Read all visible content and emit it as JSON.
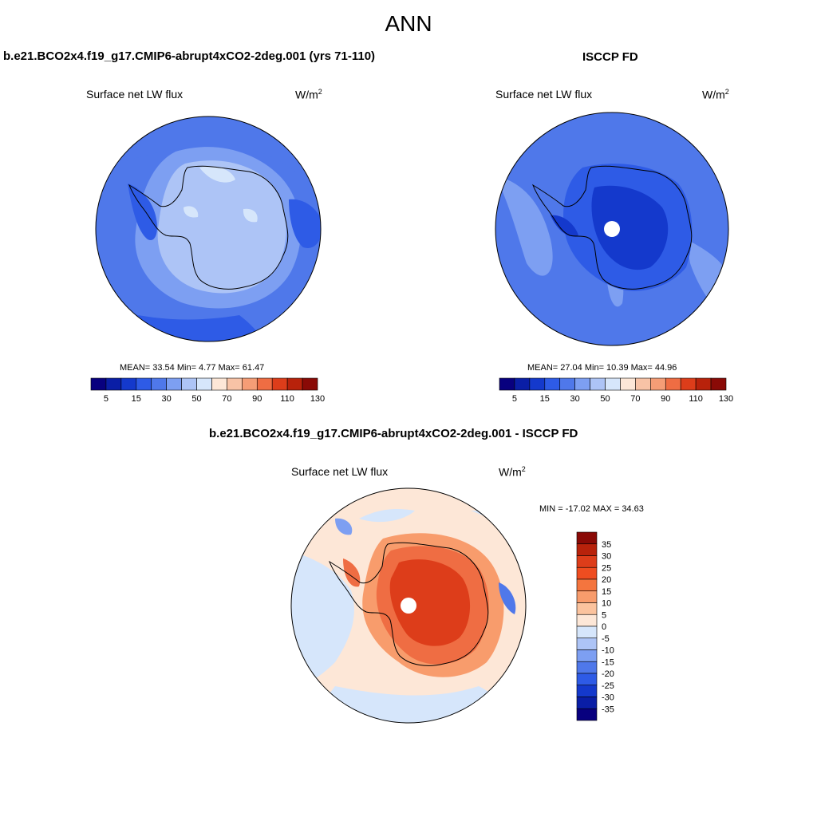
{
  "page_title": "ANN",
  "panels": [
    {
      "title": "b.e21.BCO2x4.f19_g17.CMIP6-abrupt4xCO2-2deg.001 (yrs 71-110)",
      "variable": "Surface net LW flux",
      "units_base": "W/m",
      "units_exp": "2",
      "stats": "MEAN=  33.54  Min=   4.77  Max=  61.47",
      "colorbar_labels": [
        "5",
        "15",
        "30",
        "50",
        "70",
        "90",
        "110",
        "130"
      ]
    },
    {
      "title": "ISCCP FD",
      "variable": "Surface net LW flux",
      "units_base": "W/m",
      "units_exp": "2",
      "stats": "MEAN=  27.04  Min=  10.39  Max=  44.96",
      "colorbar_labels": [
        "5",
        "15",
        "30",
        "50",
        "70",
        "90",
        "110",
        "130"
      ]
    },
    {
      "title": "b.e21.BCO2x4.f19_g17.CMIP6-abrupt4xCO2-2deg.001 - ISCCP FD",
      "variable": "Surface net LW flux",
      "units_base": "W/m",
      "units_exp": "2",
      "stats": "MIN = -17.02 MAX =  34.63",
      "colorbar_labels": [
        "35",
        "30",
        "25",
        "20",
        "15",
        "10",
        "5",
        "0",
        "-5",
        "-10",
        "-15",
        "-20",
        "-25",
        "-30",
        "-35"
      ]
    }
  ],
  "colors": {
    "abs_scale": [
      "#08007f",
      "#0a1ea6",
      "#1439cc",
      "#2e5be6",
      "#4f78ea",
      "#7d9ff2",
      "#adc4f6",
      "#d6e6fb",
      "#fde7d7",
      "#f8c3a6",
      "#f59d76",
      "#ef6d43",
      "#dd3d1a",
      "#b8220b",
      "#8a0a06"
    ],
    "diff_scale": [
      "#8a0a06",
      "#b8220b",
      "#dd3d1a",
      "#ef4d20",
      "#f4753e",
      "#f89c6c",
      "#fbc39e",
      "#fde7d7",
      "#d6e6fb",
      "#adc4f6",
      "#7d9ff2",
      "#4f78ea",
      "#2e5be6",
      "#1439cc",
      "#0a1ea6",
      "#08007f"
    ]
  }
}
